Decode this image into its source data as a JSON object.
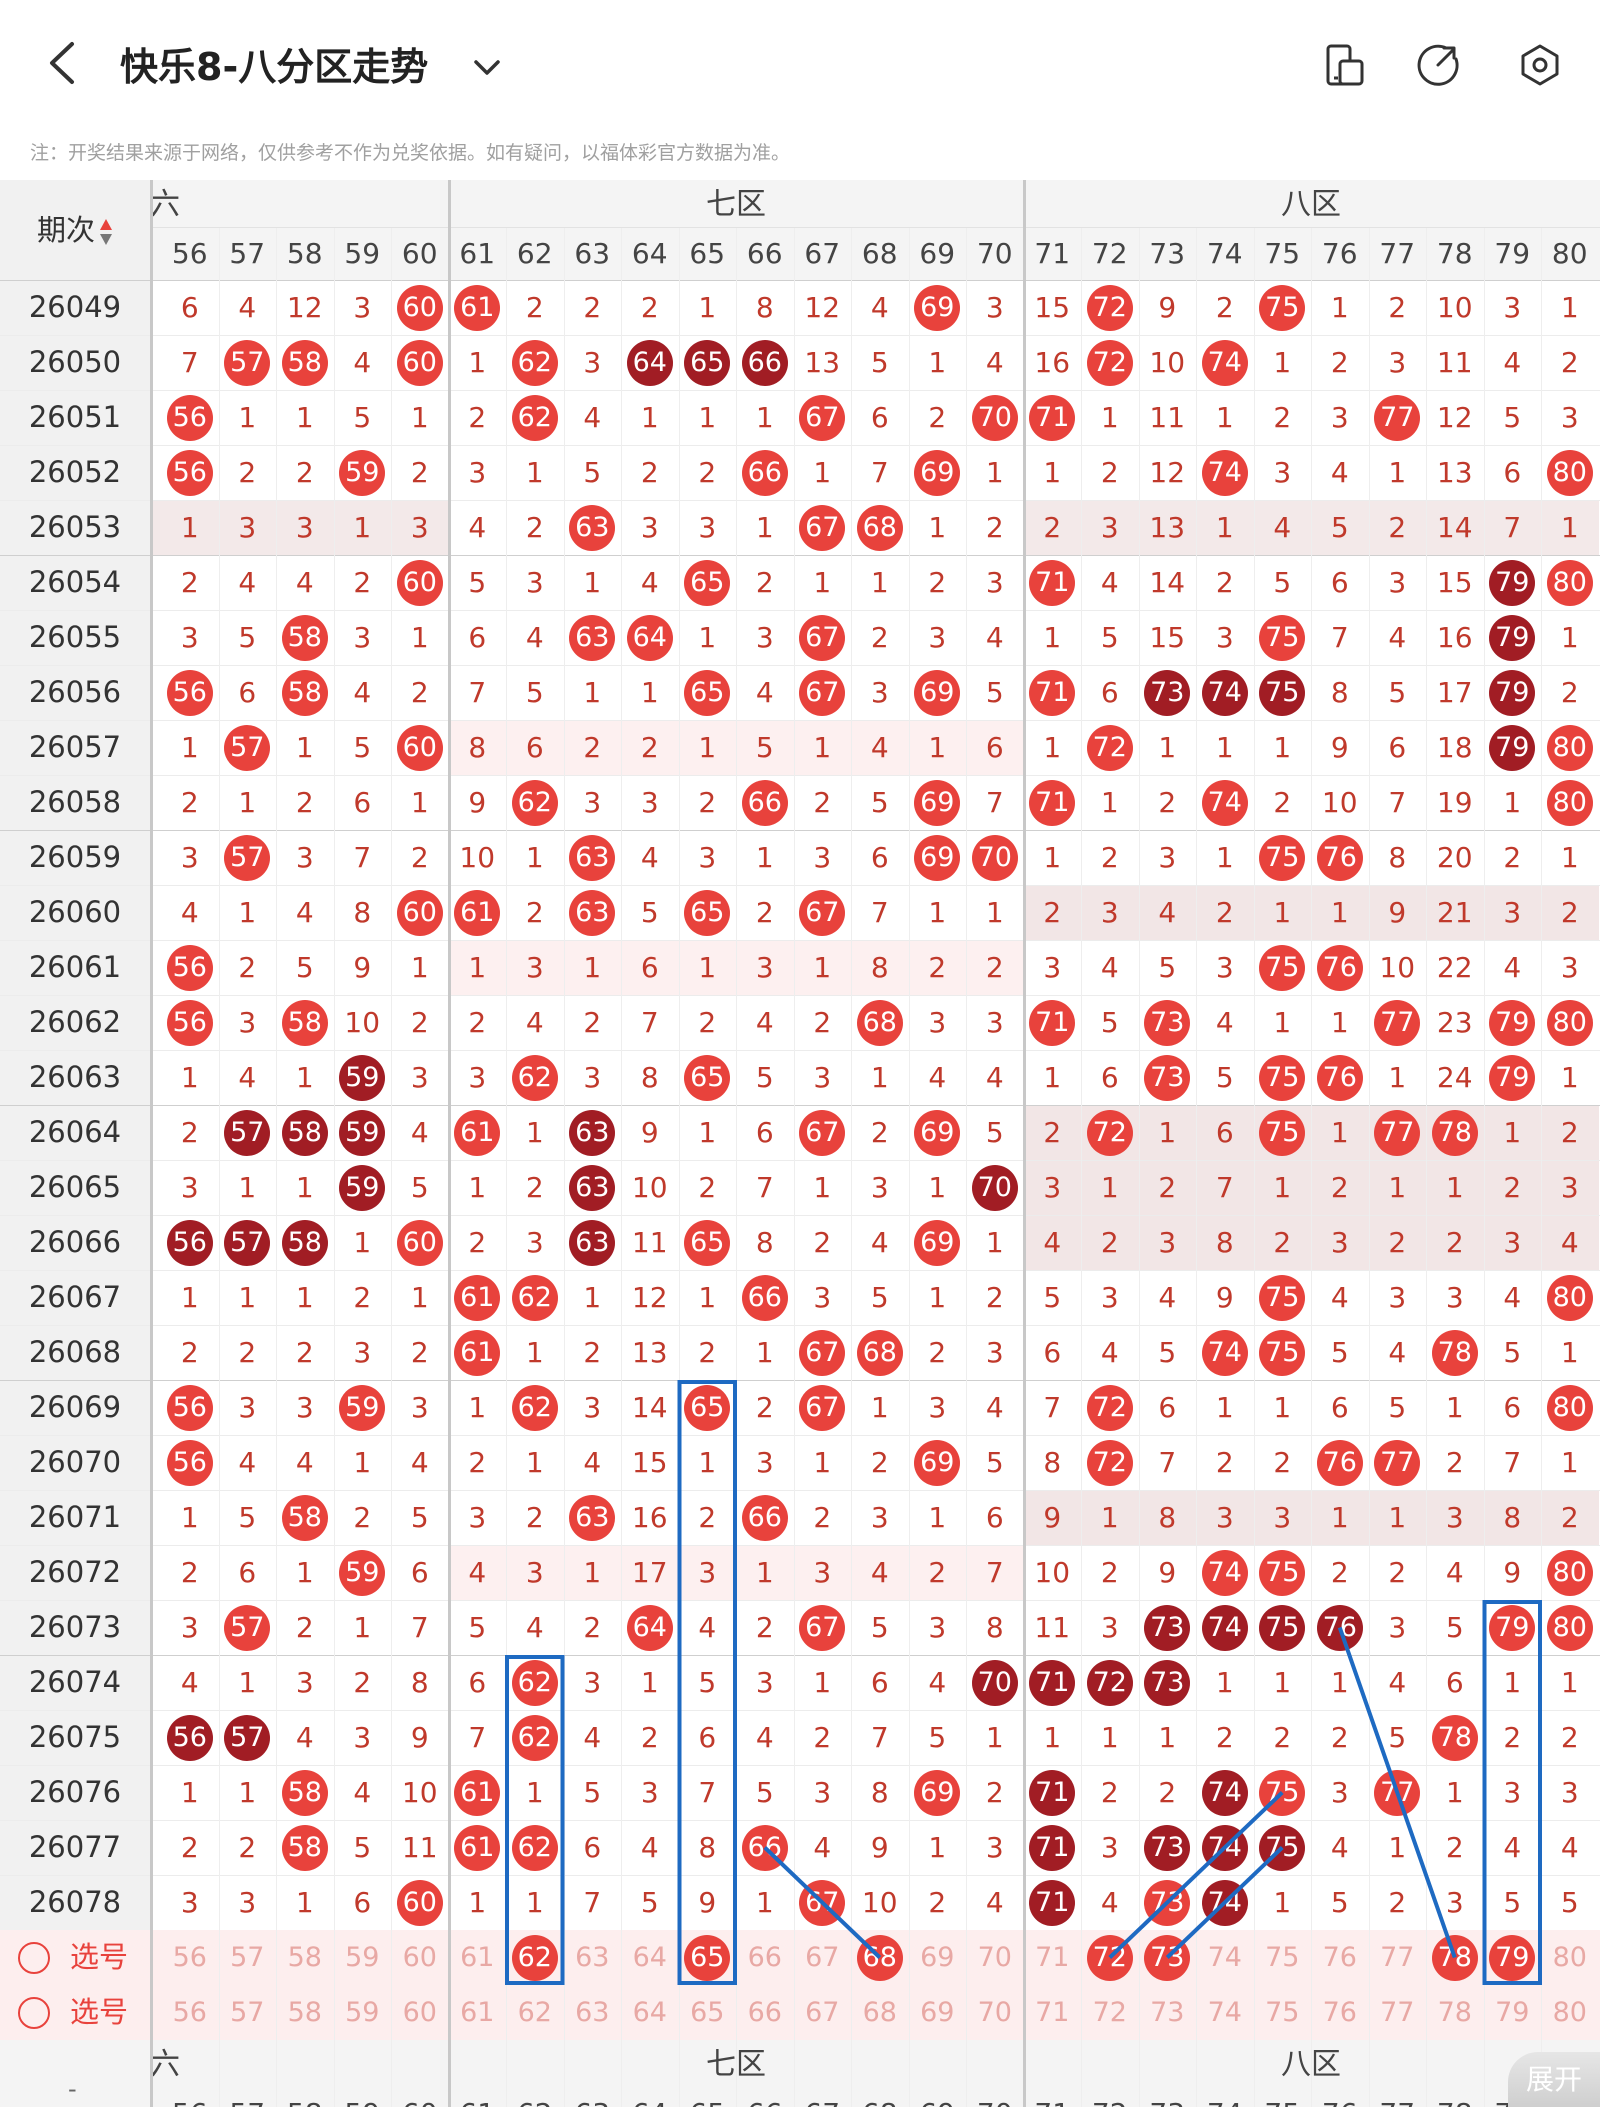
{
  "header": {
    "title": "快乐8-八分区走势",
    "note": "注：开奖结果来源于网络，仅供参考不作为兑奖依据。如有疑问，以福体彩官方数据为准。"
  },
  "table": {
    "period_label": "期次",
    "sort_icon": "sort-arrows-icon",
    "zones": [
      {
        "label": "六区",
        "start": 0,
        "end": 5
      },
      {
        "label": "七区",
        "start": 5,
        "end": 15
      },
      {
        "label": "八区",
        "start": 15,
        "end": 25
      }
    ],
    "zone_head_visible": [
      "六区",
      "七区",
      "八区"
    ],
    "columns": [
      "56",
      "57",
      "58",
      "59",
      "60",
      "61",
      "62",
      "63",
      "64",
      "65",
      "66",
      "67",
      "68",
      "69",
      "70",
      "71",
      "72",
      "73",
      "74",
      "75",
      "76",
      "77",
      "78",
      "79",
      "80"
    ],
    "rows": [
      {
        "p": "26049",
        "c": [
          "6",
          "4",
          "12",
          "3",
          "r60",
          "r61",
          "2",
          "2",
          "2",
          "1",
          "8",
          "12",
          "4",
          "r69",
          "3",
          "15",
          "r72",
          "9",
          "2",
          "r75",
          "1",
          "2",
          "10",
          "3",
          "1"
        ]
      },
      {
        "p": "26050",
        "c": [
          "7",
          "r57",
          "r58",
          "4",
          "r60",
          "1",
          "r62",
          "3",
          "d64",
          "d65",
          "d66",
          "13",
          "5",
          "1",
          "4",
          "16",
          "r72",
          "10",
          "r74",
          "1",
          "2",
          "3",
          "11",
          "4",
          "2"
        ]
      },
      {
        "p": "26051",
        "c": [
          "r56",
          "1",
          "1",
          "5",
          "1",
          "2",
          "r62",
          "4",
          "1",
          "1",
          "1",
          "r67",
          "6",
          "2",
          "r70",
          "r71",
          "1",
          "11",
          "1",
          "2",
          "3",
          "r77",
          "12",
          "5",
          "3"
        ]
      },
      {
        "p": "26052",
        "c": [
          "r56",
          "2",
          "2",
          "r59",
          "2",
          "3",
          "1",
          "5",
          "2",
          "2",
          "r66",
          "1",
          "7",
          "r69",
          "1",
          "1",
          "2",
          "12",
          "r74",
          "3",
          "4",
          "1",
          "13",
          "6",
          "r80"
        ]
      },
      {
        "p": "26053",
        "c": [
          "1",
          "3",
          "3",
          "1",
          "3",
          "4",
          "2",
          "r63",
          "3",
          "3",
          "1",
          "r67",
          "r68",
          "1",
          "2",
          "2",
          "3",
          "13",
          "1",
          "4",
          "5",
          "2",
          "14",
          "7",
          "1"
        ]
      },
      {
        "p": "26054",
        "c": [
          "2",
          "4",
          "4",
          "2",
          "r60",
          "5",
          "3",
          "1",
          "4",
          "r65",
          "2",
          "1",
          "1",
          "2",
          "3",
          "r71",
          "4",
          "14",
          "2",
          "5",
          "6",
          "3",
          "15",
          "d79",
          "r80"
        ]
      },
      {
        "p": "26055",
        "c": [
          "3",
          "5",
          "r58",
          "3",
          "1",
          "6",
          "4",
          "r63",
          "r64",
          "1",
          "3",
          "r67",
          "2",
          "3",
          "4",
          "1",
          "5",
          "15",
          "3",
          "r75",
          "7",
          "4",
          "16",
          "d79",
          "1"
        ]
      },
      {
        "p": "26056",
        "c": [
          "r56",
          "6",
          "r58",
          "4",
          "2",
          "7",
          "5",
          "1",
          "1",
          "r65",
          "4",
          "r67",
          "3",
          "r69",
          "5",
          "r71",
          "6",
          "d73",
          "d74",
          "d75",
          "8",
          "5",
          "17",
          "d79",
          "2"
        ]
      },
      {
        "p": "26057",
        "c": [
          "1",
          "r57",
          "1",
          "5",
          "r60",
          "8",
          "6",
          "2",
          "2",
          "1",
          "5",
          "1",
          "4",
          "1",
          "6",
          "1",
          "r72",
          "1",
          "1",
          "1",
          "9",
          "6",
          "18",
          "d79",
          "r80"
        ]
      },
      {
        "p": "26058",
        "c": [
          "2",
          "1",
          "2",
          "6",
          "1",
          "9",
          "r62",
          "3",
          "3",
          "2",
          "r66",
          "2",
          "5",
          "r69",
          "7",
          "r71",
          "1",
          "2",
          "r74",
          "2",
          "10",
          "7",
          "19",
          "1",
          "r80"
        ]
      },
      {
        "p": "26059",
        "c": [
          "3",
          "r57",
          "3",
          "7",
          "2",
          "10",
          "1",
          "r63",
          "4",
          "3",
          "1",
          "3",
          "6",
          "r69",
          "r70",
          "1",
          "2",
          "3",
          "1",
          "r75",
          "r76",
          "8",
          "20",
          "2",
          "1"
        ]
      },
      {
        "p": "26060",
        "c": [
          "4",
          "1",
          "4",
          "8",
          "r60",
          "r61",
          "2",
          "r63",
          "5",
          "r65",
          "2",
          "r67",
          "7",
          "1",
          "1",
          "2",
          "3",
          "4",
          "2",
          "1",
          "1",
          "9",
          "21",
          "3",
          "2"
        ]
      },
      {
        "p": "26061",
        "c": [
          "r56",
          "2",
          "5",
          "9",
          "1",
          "1",
          "3",
          "1",
          "6",
          "1",
          "3",
          "1",
          "8",
          "2",
          "2",
          "3",
          "4",
          "5",
          "3",
          "r75",
          "r76",
          "10",
          "22",
          "4",
          "3"
        ]
      },
      {
        "p": "26062",
        "c": [
          "r56",
          "3",
          "r58",
          "10",
          "2",
          "2",
          "4",
          "2",
          "7",
          "2",
          "4",
          "2",
          "r68",
          "3",
          "3",
          "r71",
          "5",
          "r73",
          "4",
          "1",
          "1",
          "r77",
          "23",
          "r79",
          "r80"
        ]
      },
      {
        "p": "26063",
        "c": [
          "1",
          "4",
          "1",
          "d59",
          "3",
          "3",
          "r62",
          "3",
          "8",
          "r65",
          "5",
          "3",
          "1",
          "4",
          "4",
          "1",
          "6",
          "r73",
          "5",
          "r75",
          "r76",
          "1",
          "24",
          "r79",
          "1"
        ]
      },
      {
        "p": "26064",
        "c": [
          "2",
          "d57",
          "d58",
          "d59",
          "4",
          "r61",
          "1",
          "d63",
          "9",
          "1",
          "6",
          "r67",
          "2",
          "r69",
          "5",
          "2",
          "r72",
          "1",
          "6",
          "r75",
          "1",
          "r77",
          "r78",
          "1",
          "2"
        ]
      },
      {
        "p": "26065",
        "c": [
          "3",
          "1",
          "1",
          "d59",
          "5",
          "1",
          "2",
          "d63",
          "10",
          "2",
          "7",
          "1",
          "3",
          "1",
          "d70",
          "3",
          "1",
          "2",
          "7",
          "1",
          "2",
          "1",
          "1",
          "2",
          "3"
        ]
      },
      {
        "p": "26066",
        "c": [
          "d56",
          "d57",
          "d58",
          "1",
          "r60",
          "2",
          "3",
          "d63",
          "11",
          "r65",
          "8",
          "2",
          "4",
          "r69",
          "1",
          "4",
          "2",
          "3",
          "8",
          "2",
          "3",
          "2",
          "2",
          "3",
          "4"
        ]
      },
      {
        "p": "26067",
        "c": [
          "1",
          "1",
          "1",
          "2",
          "1",
          "r61",
          "r62",
          "1",
          "12",
          "1",
          "r66",
          "3",
          "5",
          "1",
          "2",
          "5",
          "3",
          "4",
          "9",
          "r75",
          "4",
          "3",
          "3",
          "4",
          "r80"
        ]
      },
      {
        "p": "26068",
        "c": [
          "2",
          "2",
          "2",
          "3",
          "2",
          "r61",
          "1",
          "2",
          "13",
          "2",
          "1",
          "r67",
          "r68",
          "2",
          "3",
          "6",
          "4",
          "5",
          "r74",
          "r75",
          "5",
          "4",
          "r78",
          "5",
          "1"
        ]
      },
      {
        "p": "26069",
        "c": [
          "r56",
          "3",
          "3",
          "r59",
          "3",
          "1",
          "r62",
          "3",
          "14",
          "r65",
          "2",
          "r67",
          "1",
          "3",
          "4",
          "7",
          "r72",
          "6",
          "1",
          "1",
          "6",
          "5",
          "1",
          "6",
          "r80"
        ]
      },
      {
        "p": "26070",
        "c": [
          "r56",
          "4",
          "4",
          "1",
          "4",
          "2",
          "1",
          "4",
          "15",
          "1",
          "3",
          "1",
          "2",
          "r69",
          "5",
          "8",
          "r72",
          "7",
          "2",
          "2",
          "r76",
          "r77",
          "2",
          "7",
          "1"
        ]
      },
      {
        "p": "26071",
        "c": [
          "1",
          "5",
          "r58",
          "2",
          "5",
          "3",
          "2",
          "r63",
          "16",
          "2",
          "r66",
          "2",
          "3",
          "1",
          "6",
          "9",
          "1",
          "8",
          "3",
          "3",
          "1",
          "1",
          "3",
          "8",
          "2"
        ]
      },
      {
        "p": "26072",
        "c": [
          "2",
          "6",
          "1",
          "r59",
          "6",
          "4",
          "3",
          "1",
          "17",
          "3",
          "1",
          "3",
          "4",
          "2",
          "7",
          "10",
          "2",
          "9",
          "r74",
          "r75",
          "2",
          "2",
          "4",
          "9",
          "r80"
        ]
      },
      {
        "p": "26073",
        "c": [
          "3",
          "r57",
          "2",
          "1",
          "7",
          "5",
          "4",
          "2",
          "r64",
          "4",
          "2",
          "r67",
          "5",
          "3",
          "8",
          "11",
          "3",
          "d73",
          "d74",
          "d75",
          "d76",
          "3",
          "5",
          "r79",
          "r80"
        ]
      },
      {
        "p": "26074",
        "c": [
          "4",
          "1",
          "3",
          "2",
          "8",
          "6",
          "r62",
          "3",
          "1",
          "5",
          "3",
          "1",
          "6",
          "4",
          "d70",
          "d71",
          "d72",
          "d73",
          "1",
          "1",
          "1",
          "4",
          "6",
          "1",
          "1"
        ]
      },
      {
        "p": "26075",
        "c": [
          "d56",
          "d57",
          "4",
          "3",
          "9",
          "7",
          "r62",
          "4",
          "2",
          "6",
          "4",
          "2",
          "7",
          "5",
          "1",
          "1",
          "1",
          "1",
          "2",
          "2",
          "2",
          "5",
          "r78",
          "2",
          "2"
        ]
      },
      {
        "p": "26076",
        "c": [
          "1",
          "1",
          "r58",
          "4",
          "10",
          "r61",
          "1",
          "5",
          "3",
          "7",
          "5",
          "3",
          "8",
          "r69",
          "2",
          "d71",
          "2",
          "2",
          "d74",
          "r75",
          "3",
          "r77",
          "1",
          "3",
          "3"
        ]
      },
      {
        "p": "26077",
        "c": [
          "2",
          "2",
          "r58",
          "5",
          "11",
          "r61",
          "r62",
          "6",
          "4",
          "8",
          "r66",
          "4",
          "9",
          "1",
          "3",
          "d71",
          "3",
          "d73",
          "d74",
          "d75",
          "4",
          "1",
          "2",
          "4",
          "4"
        ]
      },
      {
        "p": "26078",
        "c": [
          "3",
          "3",
          "1",
          "6",
          "r60",
          "1",
          "1",
          "7",
          "5",
          "9",
          "1",
          "r67",
          "10",
          "2",
          "4",
          "d71",
          "4",
          "r73",
          "d74",
          "1",
          "5",
          "2",
          "3",
          "5",
          "5"
        ]
      }
    ],
    "select_rows": [
      {
        "label": "选号",
        "c": [
          "56",
          "57",
          "58",
          "59",
          "60",
          "61",
          "r62",
          "63",
          "64",
          "r65",
          "66",
          "67",
          "r68",
          "69",
          "70",
          "71",
          "r72",
          "r73",
          "74",
          "75",
          "76",
          "77",
          "r78",
          "r79",
          "80"
        ]
      },
      {
        "label": "选号",
        "c": [
          "56",
          "57",
          "58",
          "59",
          "60",
          "61",
          "62",
          "63",
          "64",
          "65",
          "66",
          "67",
          "68",
          "69",
          "70",
          "71",
          "72",
          "73",
          "74",
          "75",
          "76",
          "77",
          "78",
          "79",
          "80"
        ]
      }
    ],
    "footer_zones": [
      "六区",
      "七区",
      "八区"
    ],
    "footer_dash": "-"
  },
  "expand_button": "展开",
  "colors": {
    "ball_red": "#e8423c",
    "ball_dark": "#a11d24",
    "text_red": "#c0392b",
    "highlight_blue": "#1e6ac2"
  }
}
